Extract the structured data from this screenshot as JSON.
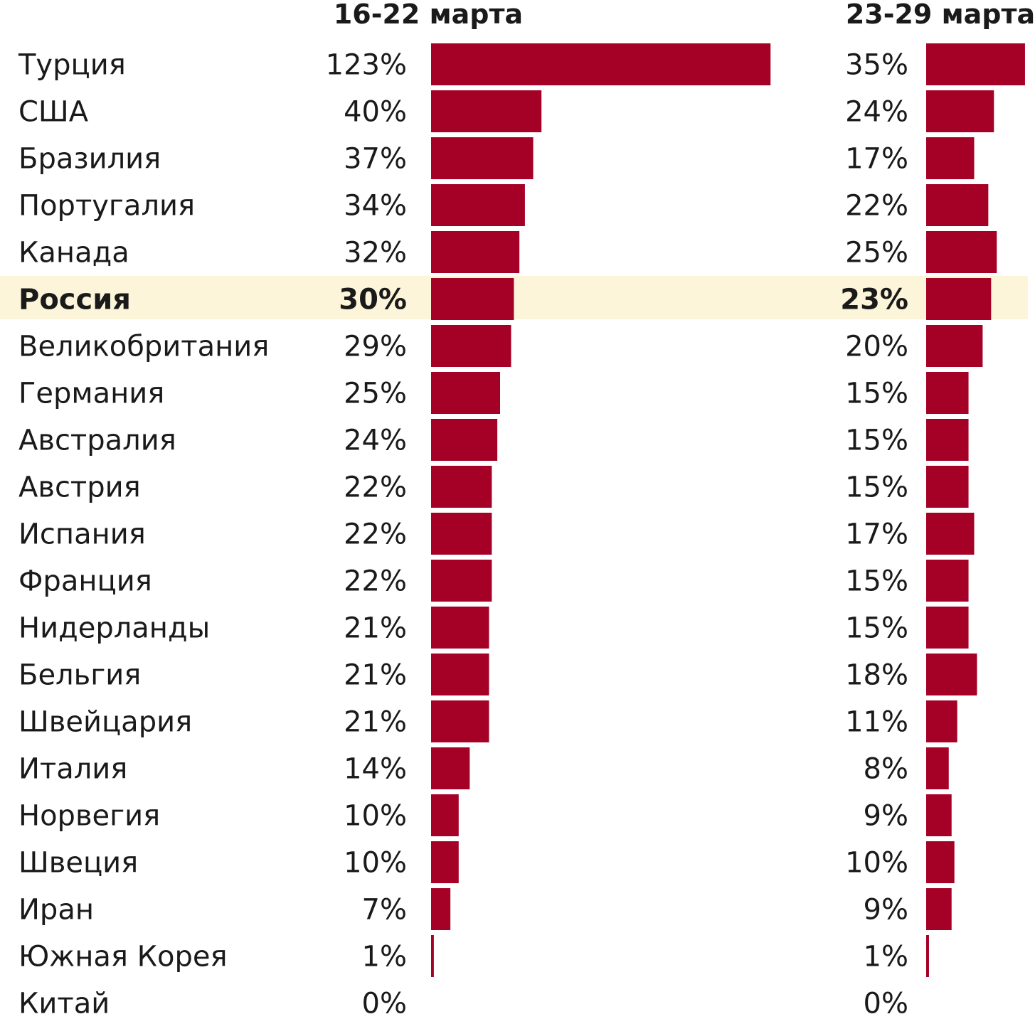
{
  "chart_data": {
    "type": "bar",
    "orientation": "horizontal",
    "highlight_category": "Россия",
    "colors": {
      "bar": "#a50026",
      "highlight_band": "#fdf5d9",
      "text": "#1a1a1a"
    },
    "categories": [
      "Турция",
      "США",
      "Бразилия",
      "Португалия",
      "Канада",
      "Россия",
      "Великобритания",
      "Германия",
      "Австралия",
      "Австрия",
      "Испания",
      "Франция",
      "Нидерланды",
      "Бельгия",
      "Швейцария",
      "Италия",
      "Норвегия",
      "Швеция",
      "Иран",
      "Южная Корея",
      "Китай"
    ],
    "series": [
      {
        "name": "16-22 марта",
        "values": [
          123,
          40,
          37,
          34,
          32,
          30,
          29,
          25,
          24,
          22,
          22,
          22,
          21,
          21,
          21,
          14,
          10,
          10,
          7,
          1,
          0
        ],
        "labels": [
          "123%",
          "40%",
          "37%",
          "34%",
          "32%",
          "30%",
          "29%",
          "25%",
          "24%",
          "22%",
          "22%",
          "22%",
          "21%",
          "21%",
          "21%",
          "14%",
          "10%",
          "10%",
          "7%",
          "1%",
          "0%"
        ]
      },
      {
        "name": "23-29 марта",
        "values": [
          35,
          24,
          17,
          22,
          25,
          23,
          20,
          15,
          15,
          15,
          17,
          15,
          15,
          18,
          11,
          8,
          9,
          10,
          9,
          1,
          0
        ],
        "labels": [
          "35%",
          "24%",
          "17%",
          "22%",
          "25%",
          "23%",
          "20%",
          "15%",
          "15%",
          "15%",
          "17%",
          "15%",
          "15%",
          "18%",
          "11%",
          "8%",
          "9%",
          "10%",
          "9%",
          "1%",
          "0%"
        ]
      }
    ]
  }
}
